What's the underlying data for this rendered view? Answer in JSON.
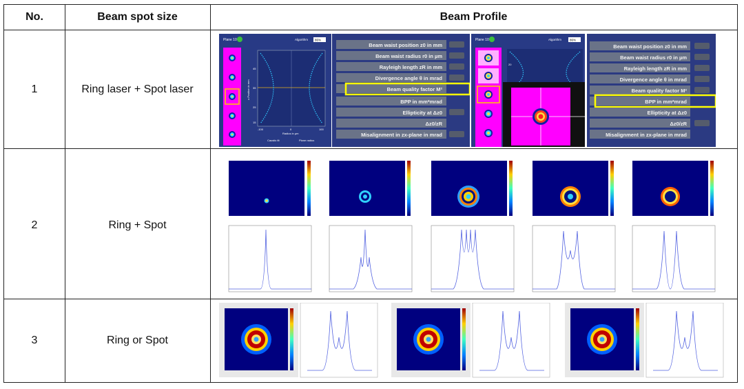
{
  "header": {
    "no": "No.",
    "size": "Beam spot size",
    "profile": "Beam Profile"
  },
  "rows": [
    {
      "no": "1",
      "size": "Ring laser + Spot laser"
    },
    {
      "no": "2",
      "size": "Ring + Spot"
    },
    {
      "no": "3",
      "size": "Ring or Spot"
    }
  ],
  "row1": {
    "panel1": {
      "plane": "Plane 10",
      "algo": "Algorithm",
      "algo_val": "86%",
      "ticks_y": [
        "45",
        "35",
        "25",
        "15"
      ],
      "ticks_x": [
        "-100",
        "0",
        "100"
      ],
      "xlabel": "Radius in µm",
      "ylabel": "z-Position in mm",
      "legend": [
        "Caustic fit",
        "Plane radius"
      ]
    },
    "params_left": [
      "Beam waist position z0 in mm",
      "Beam waist radius r0 in µm",
      "Rayleigh length zR in mm",
      "Divergence angle θ in mrad",
      "Beam quality factor M²",
      "BPP in mm*mrad",
      "Ellipticity at Δz0",
      "Δz0/zR",
      "Misalignment in zx-plane in mrad"
    ],
    "panel2": {
      "plane": "Plane 10",
      "algo": "Algorithm",
      "algo_val": "86%",
      "tick": "20"
    },
    "params_right": [
      "Beam waist position z0 in mm",
      "Beam waist radius r0 in µm",
      "Rayleigh length zR in mm",
      "Divergence angle θ in mrad",
      "Beam quality factor M²",
      "BPP in mm*mrad",
      "Ellipticity at Δz0",
      "Δz0/zR",
      "Misalignment in zx-plane in mrad"
    ]
  },
  "colors": {
    "border": "#222222",
    "ui_bg": "#2e3f8a",
    "magenta": "#ff00ff",
    "highlight": "#ffff00",
    "jet_bg": "#00007f"
  }
}
